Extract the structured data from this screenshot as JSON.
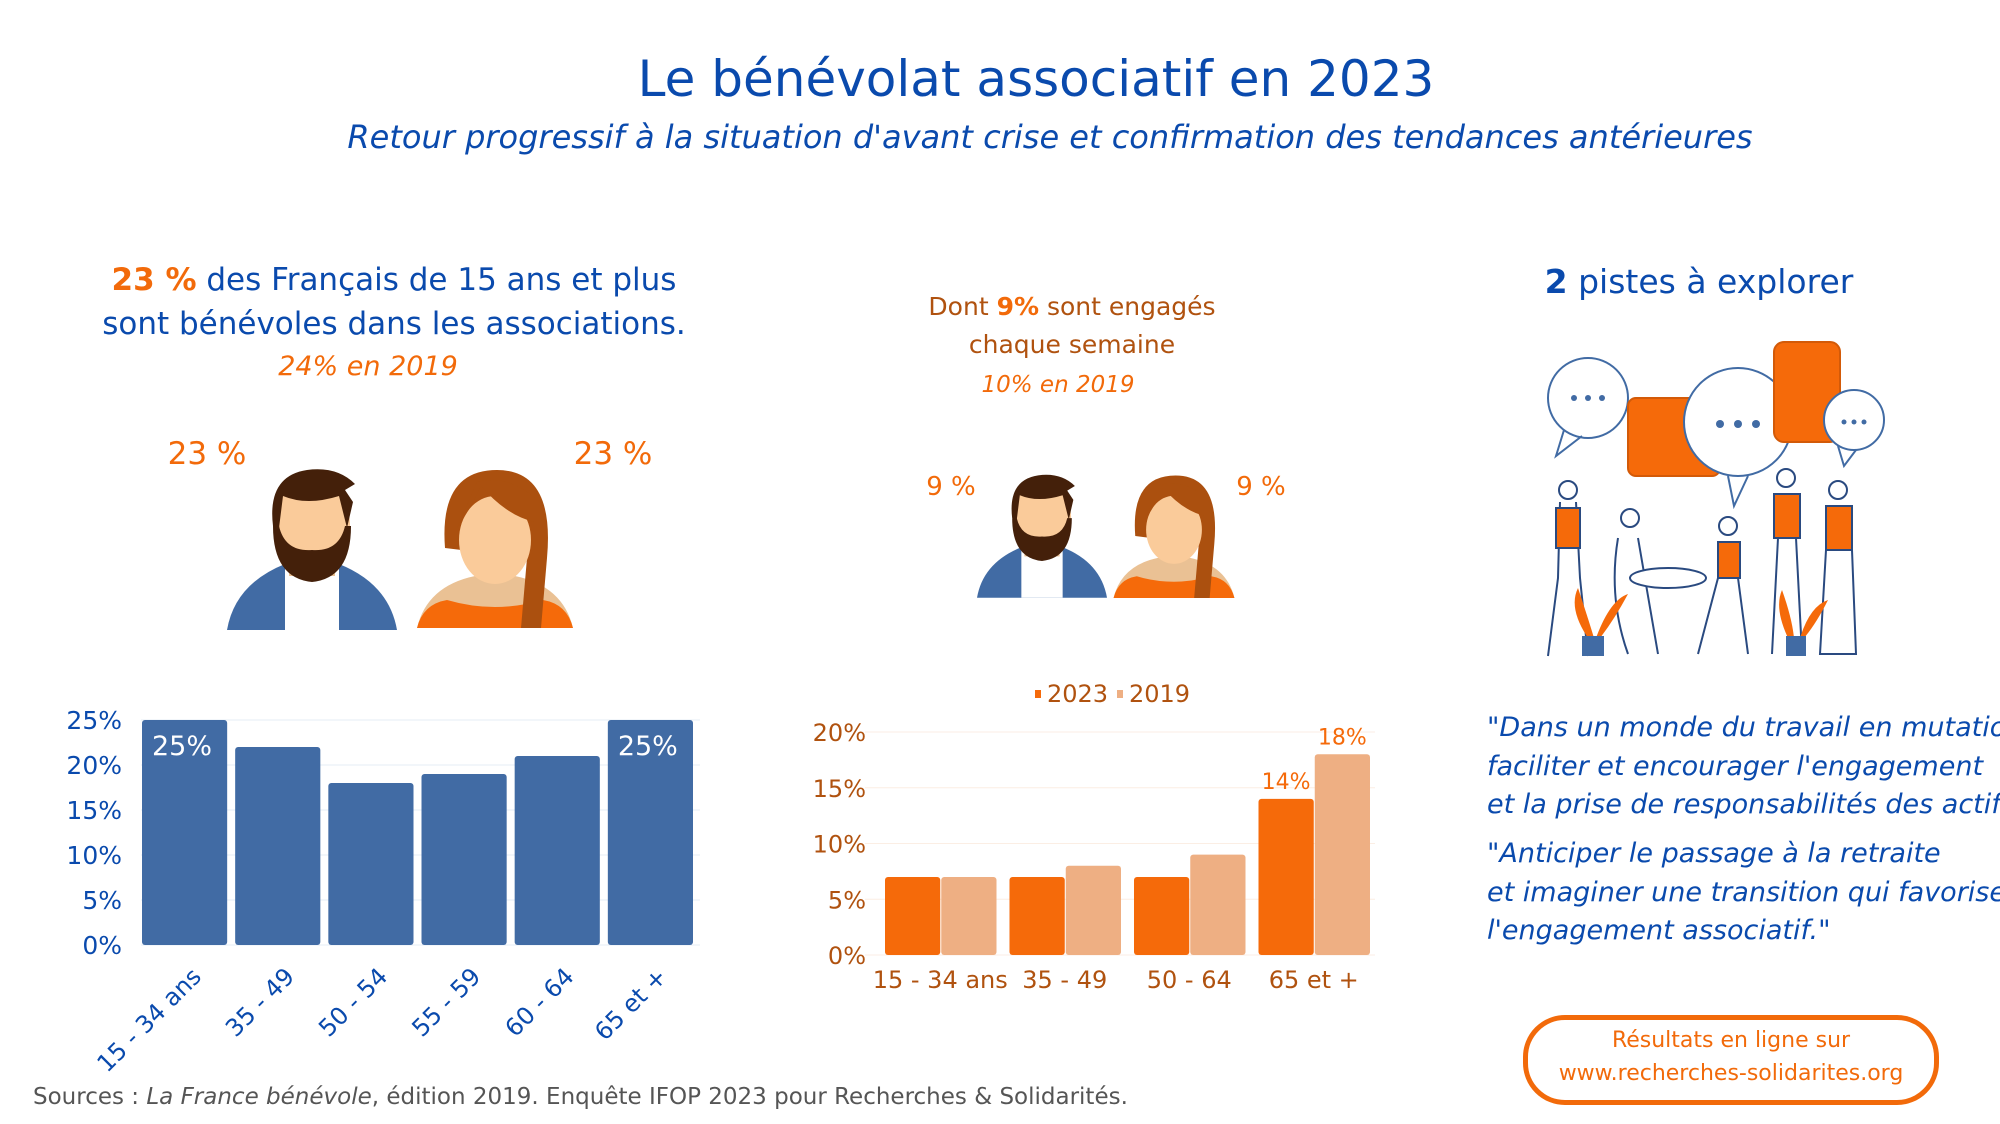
{
  "header": {
    "title": "Le bénévolat associatif en 2023",
    "subtitle": "Retour progressif à la situation d'avant crise et confirmation des tendances antérieures"
  },
  "left": {
    "headline_pct": "23 %",
    "headline_rest1": " des Français de 15 ans et plus",
    "headline_line2": "sont bénévoles dans les associations.",
    "previous": "24% en 2019",
    "men_pct": "23 %",
    "women_pct": "23 %"
  },
  "middle": {
    "line1_pre": "Dont ",
    "line1_pct": "9%",
    "line1_post": " sont engagés",
    "line2": "chaque semaine",
    "previous": "10% en 2019",
    "men_pct": "9 %",
    "women_pct": "9 %"
  },
  "right": {
    "count": "2",
    "heading": " pistes à explorer",
    "quote1": [
      "\"Dans un monde du travail en mutation,",
      " faciliter et encourager l'engagement",
      "et la prise de responsabilités des actifs.\""
    ],
    "quote2": [
      "\"Anticiper le passage à la retraite",
      "et imaginer une transition qui favorise",
      "l'engagement associatif.\""
    ],
    "cta_line1": "Résultats en ligne sur",
    "cta_line2": "www.recherches-solidarites.org"
  },
  "sources": {
    "prefix": "Sources : ",
    "title": "La France bénévole",
    "suffix": ", édition 2019. Enquête IFOP 2023 pour Recherches & Solidarités."
  },
  "colors": {
    "blue": "#0a4aad",
    "bar_blue": "#416ba4",
    "orange": "#f56a0a",
    "light_orange": "#eeaf83",
    "brown": "#b0520f"
  },
  "chart_data": [
    {
      "type": "bar",
      "categories": [
        "15 - 34 ans",
        "35 - 49",
        "50 - 54",
        "55 - 59",
        "60 - 64",
        "65 et +"
      ],
      "values": [
        25,
        22,
        18,
        19,
        21,
        25
      ],
      "data_labels": [
        "25%",
        "",
        "",
        "",
        "",
        "25%"
      ],
      "ylim": [
        0,
        25
      ],
      "yticks": [
        "0%",
        "5%",
        "10%",
        "15%",
        "20%",
        "25%"
      ],
      "grid": true
    },
    {
      "type": "bar",
      "categories": [
        "15 - 34 ans",
        "35 - 49",
        "50 - 64",
        "65 et +"
      ],
      "series": [
        {
          "name": "2023",
          "values": [
            7,
            7,
            7,
            14
          ],
          "data_labels": [
            "",
            "",
            "",
            "14%"
          ]
        },
        {
          "name": "2019",
          "values": [
            7,
            8,
            9,
            18
          ],
          "data_labels": [
            "",
            "",
            "",
            "18%"
          ]
        }
      ],
      "ylim": [
        0,
        20
      ],
      "yticks": [
        "0%",
        "5%",
        "10%",
        "15%",
        "20%"
      ],
      "grid": true,
      "legend": "top"
    }
  ]
}
